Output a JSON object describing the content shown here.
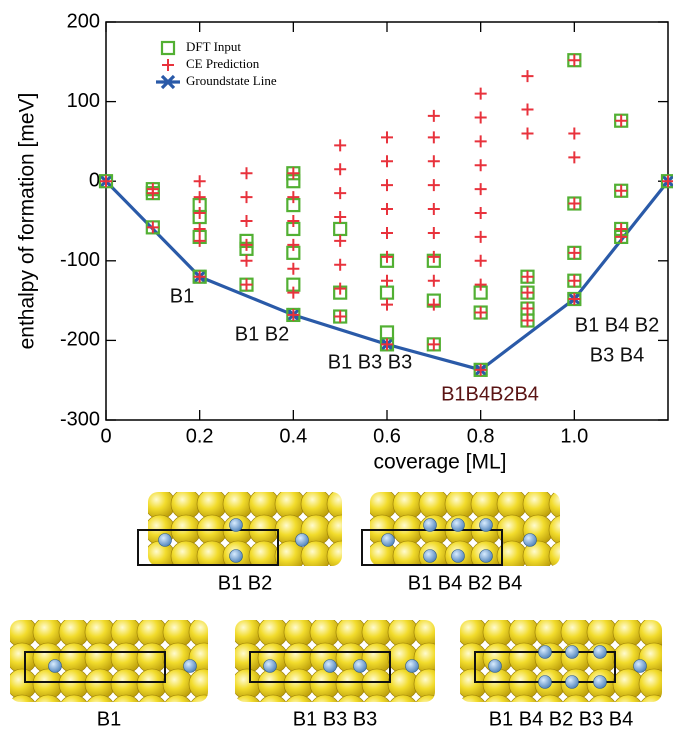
{
  "chart_data": {
    "type": "scatter",
    "xlabel": "coverage [ML]",
    "ylabel": "enthalpy of formation [meV]",
    "xlim": [
      0,
      1.2
    ],
    "ylim": [
      -300,
      200
    ],
    "xticks": [
      0,
      0.2,
      0.4,
      0.6,
      0.8,
      {
        "value": 1,
        "label": "1.0"
      }
    ],
    "yticks": [
      -300,
      -200,
      -100,
      0,
      100,
      200
    ],
    "legend": "upper left",
    "series": [
      {
        "name": "DFT Input",
        "color": "#52b033",
        "marker": "square",
        "x": [
          0,
          0.1,
          0.1,
          0.1,
          0.2,
          0.2,
          0.2,
          0.2,
          0.3,
          0.3,
          0.3,
          0.4,
          0.4,
          0.4,
          0.4,
          0.4,
          0.4,
          0.4,
          0.5,
          0.5,
          0.5,
          0.6,
          0.6,
          0.6,
          0.6,
          0.7,
          0.7,
          0.7,
          0.8,
          0.8,
          0.8,
          0.9,
          0.9,
          0.9,
          0.9,
          1,
          1,
          1,
          1,
          1,
          1.1,
          1.1,
          1.1,
          1.1,
          1.2
        ],
        "values": [
          0,
          -10,
          -15,
          -58,
          -30,
          -45,
          -70,
          -120,
          -75,
          -85,
          -130,
          0,
          10,
          -30,
          -60,
          -90,
          -130,
          -168,
          -60,
          -140,
          -170,
          -100,
          -140,
          -190,
          -205,
          -100,
          -150,
          -205,
          -140,
          -165,
          -237,
          -120,
          -140,
          -160,
          -175,
          152,
          -28,
          -90,
          -125,
          -148,
          76,
          -12,
          -60,
          -70,
          0
        ]
      },
      {
        "name": "CE Prediction",
        "color": "#e8323c",
        "marker": "plus",
        "x": [
          0,
          0.1,
          0.1,
          0.1,
          0.2,
          0.2,
          0.2,
          0.2,
          0.2,
          0.2,
          0.3,
          0.3,
          0.3,
          0.3,
          0.3,
          0.3,
          0.4,
          0.4,
          0.4,
          0.4,
          0.4,
          0.4,
          0.4,
          0.5,
          0.5,
          0.5,
          0.5,
          0.5,
          0.5,
          0.5,
          0.5,
          0.6,
          0.6,
          0.6,
          0.6,
          0.6,
          0.6,
          0.6,
          0.6,
          0.6,
          0.7,
          0.7,
          0.7,
          0.7,
          0.7,
          0.7,
          0.7,
          0.7,
          0.7,
          0.7,
          0.8,
          0.8,
          0.8,
          0.8,
          0.8,
          0.8,
          0.8,
          0.8,
          0.8,
          0.8,
          0.8,
          0.9,
          0.9,
          0.9,
          0.9,
          0.9,
          0.9,
          0.9,
          1,
          1,
          1,
          1,
          1,
          1,
          1,
          1.1,
          1.1,
          1.1,
          1.1,
          1.2
        ],
        "values": [
          0,
          -10,
          -15,
          -58,
          0,
          -20,
          -40,
          -60,
          -75,
          -120,
          10,
          -20,
          -50,
          -80,
          -100,
          -130,
          10,
          -20,
          -50,
          -80,
          -110,
          -140,
          -168,
          45,
          15,
          -15,
          -45,
          -75,
          -105,
          -135,
          -170,
          55,
          25,
          -5,
          -35,
          -65,
          -95,
          -125,
          -155,
          -205,
          82,
          55,
          25,
          -5,
          -35,
          -65,
          -95,
          -125,
          -155,
          -205,
          110,
          80,
          50,
          20,
          -10,
          -40,
          -70,
          -100,
          -130,
          -165,
          -237,
          132,
          90,
          60,
          -120,
          -140,
          -160,
          -175,
          152,
          60,
          30,
          -28,
          -90,
          -125,
          -148,
          76,
          -12,
          -60,
          -70,
          0
        ]
      },
      {
        "name": "Groundstate Line",
        "color": "#2a5aa8",
        "marker": "x",
        "x": [
          0,
          0.2,
          0.4,
          0.6,
          0.8,
          1,
          1.2
        ],
        "values": [
          0,
          -120,
          -168,
          -205,
          -237,
          -148,
          0
        ]
      }
    ],
    "annotations": [
      {
        "text": "B1",
        "color": "#111111"
      },
      {
        "text": "B1 B2",
        "color": "#111111"
      },
      {
        "text": "B1 B3 B3",
        "color": "#111111"
      },
      {
        "text": "B1B4B2B4",
        "color": "#5a1414"
      },
      {
        "text": "B1 B4 B2",
        "color": "#111111"
      },
      {
        "text": "B3 B4",
        "color": "#111111"
      }
    ]
  },
  "structures": [
    {
      "label": "B1 B2"
    },
    {
      "label": "B1 B4 B2 B4"
    },
    {
      "label": "B1"
    },
    {
      "label": "B1 B3 B3"
    },
    {
      "label": "B1 B4 B2 B3 B4"
    }
  ]
}
